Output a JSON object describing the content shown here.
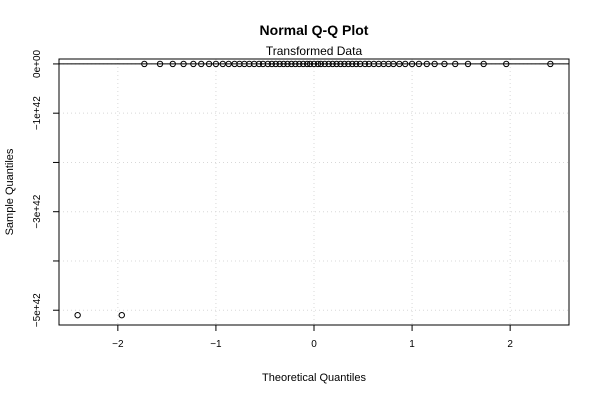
{
  "chart_data": {
    "type": "scatter",
    "title": "Normal Q-Q Plot",
    "subtitle": "Transformed Data",
    "xlabel": "Theoretical Quantiles",
    "ylabel": "Sample Quantiles",
    "xlim": [
      -2.6,
      2.6
    ],
    "ylim": [
      -5.3e+42,
      1e+41
    ],
    "grid": true,
    "reference_line_y": 0,
    "x_ticks": [
      {
        "value": -2,
        "label": "−2"
      },
      {
        "value": -1,
        "label": "−1"
      },
      {
        "value": 0,
        "label": "0"
      },
      {
        "value": 1,
        "label": "1"
      },
      {
        "value": 2,
        "label": "2"
      }
    ],
    "y_ticks": [
      {
        "value": 0,
        "label": "0e+00"
      },
      {
        "value": -1e+42,
        "label": "−1e+42"
      },
      {
        "value": -2e+42,
        "label": ""
      },
      {
        "value": -3e+42,
        "label": "−3e+42"
      },
      {
        "value": -4e+42,
        "label": ""
      },
      {
        "value": -5e+42,
        "label": "−5e+42"
      }
    ],
    "points": {
      "x": [
        -2.41,
        -1.96,
        -1.73,
        -1.57,
        -1.44,
        -1.33,
        -1.23,
        -1.15,
        -1.07,
        -1.0,
        -0.93,
        -0.87,
        -0.81,
        -0.76,
        -0.71,
        -0.66,
        -0.61,
        -0.56,
        -0.52,
        -0.47,
        -0.43,
        -0.39,
        -0.35,
        -0.31,
        -0.27,
        -0.23,
        -0.19,
        -0.15,
        -0.11,
        -0.07,
        -0.04,
        0.0,
        0.04,
        0.07,
        0.11,
        0.15,
        0.19,
        0.23,
        0.27,
        0.31,
        0.35,
        0.39,
        0.43,
        0.47,
        0.52,
        0.56,
        0.61,
        0.66,
        0.71,
        0.76,
        0.81,
        0.87,
        0.93,
        1.0,
        1.07,
        1.15,
        1.23,
        1.33,
        1.44,
        1.57,
        1.73,
        1.96,
        2.41
      ],
      "y": [
        -5.1e+42,
        -5.1e+42,
        0,
        0,
        0,
        0,
        0,
        0,
        0,
        0,
        0,
        0,
        0,
        0,
        0,
        0,
        0,
        0,
        0,
        0,
        0,
        0,
        0,
        0,
        0,
        0,
        0,
        0,
        0,
        0,
        0,
        0,
        0,
        0,
        0,
        0,
        0,
        0,
        0,
        0,
        0,
        0,
        0,
        0,
        0,
        0,
        0,
        0,
        0,
        0,
        0,
        0,
        0,
        0,
        0,
        0,
        0,
        0,
        0,
        0,
        0,
        0,
        0
      ]
    }
  }
}
